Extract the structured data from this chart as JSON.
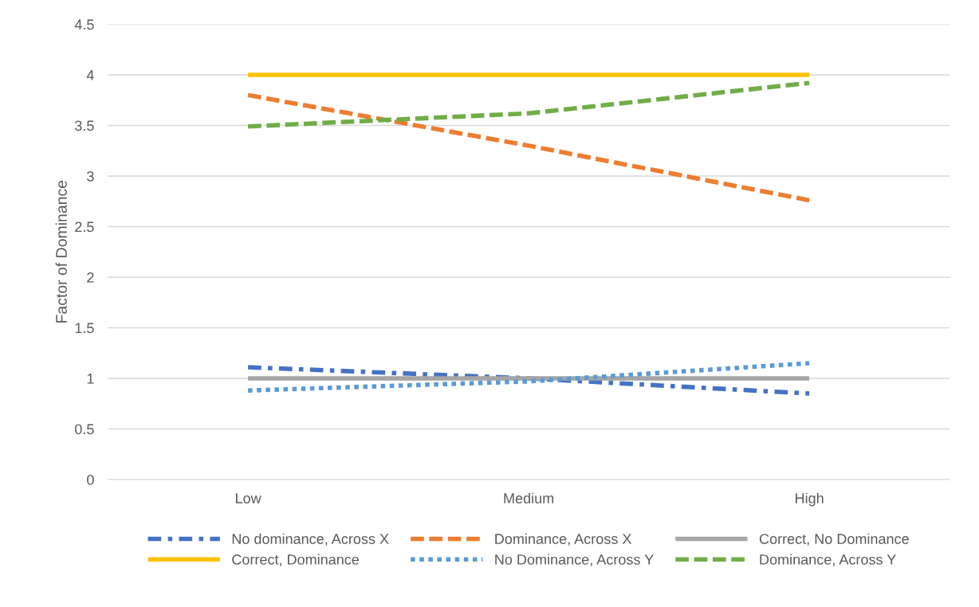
{
  "chart_data": {
    "type": "line",
    "ylabel": "Factor of Dominance",
    "categories": [
      "Low",
      "Medium",
      "High"
    ],
    "series": [
      {
        "name": "No dominance, Across X",
        "color": "#4472c4",
        "line_style": "dashdot",
        "values": [
          1.11,
          1.0,
          0.85
        ]
      },
      {
        "name": "Dominance, Across X",
        "color": "#ed7d31",
        "line_style": "dashed",
        "values": [
          3.8,
          3.3,
          2.76
        ]
      },
      {
        "name": "Correct, No Dominance",
        "color": "#a5a5a5",
        "line_style": "solid",
        "values": [
          1,
          1,
          1
        ]
      },
      {
        "name": "Correct, Dominance",
        "color": "#ffc000",
        "line_style": "solid",
        "values": [
          4,
          4,
          4
        ]
      },
      {
        "name": "No Dominance, Across Y",
        "color": "#5b9bd5",
        "line_style": "dotted",
        "values": [
          0.88,
          0.97,
          1.15
        ]
      },
      {
        "name": "Dominance, Across Y",
        "color": "#70ad47",
        "line_style": "dashed",
        "values": [
          3.49,
          3.62,
          3.92
        ]
      }
    ],
    "ylim": [
      0,
      4.5
    ],
    "yticks": [
      0,
      0.5,
      1,
      1.5,
      2,
      2.5,
      3,
      3.5,
      4,
      4.5
    ],
    "grid": "y",
    "legend": "bottom",
    "marker": "none"
  }
}
